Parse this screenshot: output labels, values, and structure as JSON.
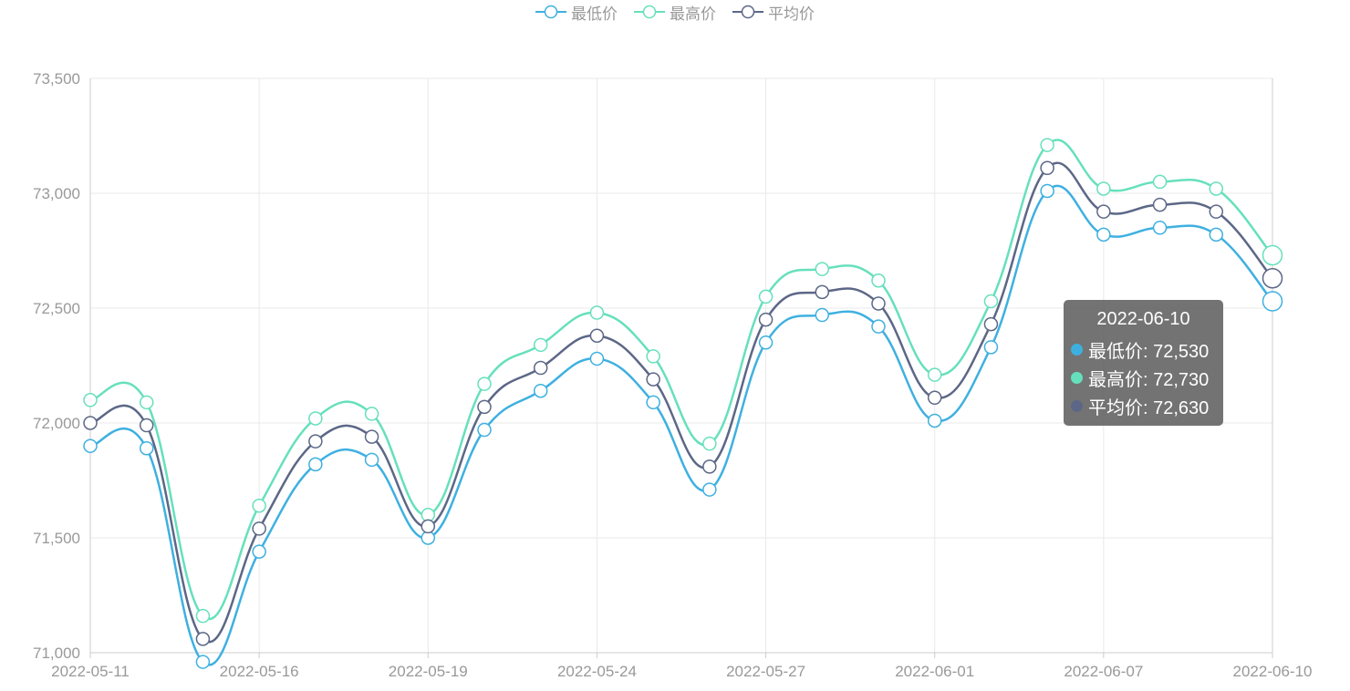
{
  "chart_data": {
    "type": "line",
    "smooth": true,
    "categories": [
      "2022-05-11",
      "2022-05-12",
      "2022-05-13",
      "2022-05-16",
      "2022-05-17",
      "2022-05-18",
      "2022-05-19",
      "2022-05-20",
      "2022-05-23",
      "2022-05-24",
      "2022-05-25",
      "2022-05-26",
      "2022-05-27",
      "2022-05-30",
      "2022-05-31",
      "2022-06-01",
      "2022-06-02",
      "2022-06-06",
      "2022-06-07",
      "2022-06-08",
      "2022-06-09",
      "2022-06-10"
    ],
    "x_tick_labels": [
      "2022-05-11",
      "2022-05-16",
      "2022-05-19",
      "2022-05-24",
      "2022-05-27",
      "2022-06-01",
      "2022-06-07",
      "2022-06-10"
    ],
    "series": [
      {
        "name": "最低价",
        "color": "#3eb0e0",
        "values": [
          71900,
          71890,
          70960,
          71440,
          71820,
          71840,
          71500,
          71970,
          72140,
          72280,
          72090,
          71710,
          72350,
          72470,
          72420,
          72010,
          72330,
          73010,
          72820,
          72850,
          72820,
          72530
        ]
      },
      {
        "name": "最高价",
        "color": "#66e0bc",
        "values": [
          72100,
          72090,
          71160,
          71640,
          72020,
          72040,
          71600,
          72170,
          72340,
          72480,
          72290,
          71910,
          72550,
          72670,
          72620,
          72210,
          72530,
          73210,
          73020,
          73050,
          73020,
          72730
        ]
      },
      {
        "name": "平均价",
        "color": "#5c6787",
        "values": [
          72000,
          71990,
          71060,
          71540,
          71920,
          71940,
          71550,
          72070,
          72240,
          72380,
          72190,
          71810,
          72450,
          72570,
          72520,
          72110,
          72430,
          73110,
          72920,
          72950,
          72920,
          72630
        ]
      }
    ],
    "y_ticks": [
      "71,000",
      "71,500",
      "72,000",
      "72,500",
      "73,000",
      "73,500"
    ],
    "ylim": [
      71000,
      73500
    ],
    "grid": true,
    "legend_position": "top-center",
    "tooltip": {
      "title": "2022-06-10",
      "rows": [
        {
          "label": "最低价: 72,530",
          "color": "#3eb0e0"
        },
        {
          "label": "最高价: 72,730",
          "color": "#66e0bc"
        },
        {
          "label": "平均价: 72,630",
          "color": "#5c6787"
        }
      ]
    }
  }
}
